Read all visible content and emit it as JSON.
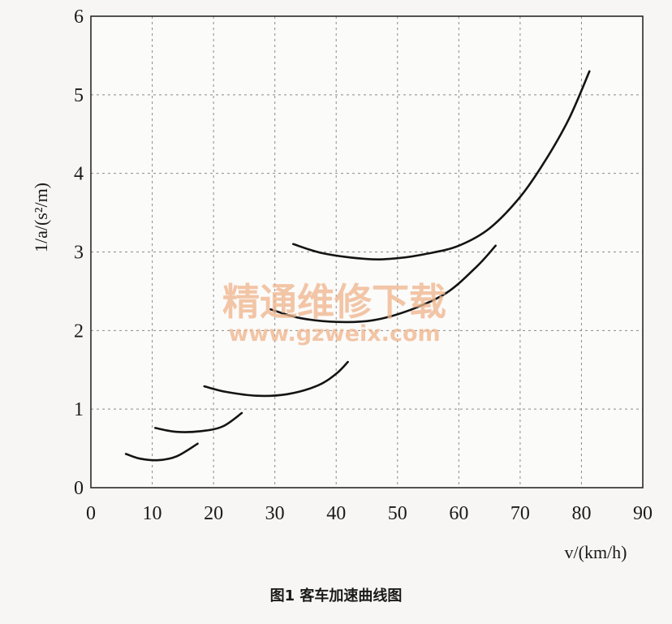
{
  "chart_data": {
    "type": "line",
    "xlabel": "v/(km/h)",
    "ylabel": "1/a/(s²/m)",
    "xlim": [
      0,
      90
    ],
    "ylim": [
      0,
      6
    ],
    "x_ticks": [
      "0",
      "10",
      "20",
      "30",
      "40",
      "50",
      "60",
      "70",
      "80",
      "90"
    ],
    "y_ticks": [
      "0",
      "1",
      "2",
      "3",
      "4",
      "5",
      "6"
    ],
    "grid": true,
    "series": [
      {
        "points": [
          [
            5.7,
            0.43
          ],
          [
            8,
            0.37
          ],
          [
            11,
            0.35
          ],
          [
            14,
            0.4
          ],
          [
            17.4,
            0.56
          ]
        ]
      },
      {
        "points": [
          [
            10.5,
            0.76
          ],
          [
            14,
            0.71
          ],
          [
            18,
            0.72
          ],
          [
            21.5,
            0.78
          ],
          [
            24.6,
            0.95
          ]
        ]
      },
      {
        "points": [
          [
            18.5,
            1.29
          ],
          [
            22,
            1.22
          ],
          [
            27,
            1.17
          ],
          [
            32,
            1.19
          ],
          [
            37,
            1.3
          ],
          [
            40,
            1.45
          ],
          [
            41.9,
            1.6
          ]
        ]
      },
      {
        "points": [
          [
            29.3,
            2.27
          ],
          [
            34,
            2.16
          ],
          [
            40,
            2.11
          ],
          [
            46,
            2.13
          ],
          [
            52,
            2.26
          ],
          [
            58,
            2.48
          ],
          [
            63,
            2.82
          ],
          [
            66,
            3.08
          ]
        ]
      },
      {
        "points": [
          [
            33,
            3.1
          ],
          [
            38,
            2.98
          ],
          [
            45,
            2.91
          ],
          [
            50,
            2.92
          ],
          [
            55,
            2.98
          ],
          [
            60,
            3.08
          ],
          [
            65,
            3.3
          ],
          [
            70,
            3.7
          ],
          [
            74,
            4.15
          ],
          [
            78,
            4.7
          ],
          [
            81.3,
            5.3
          ]
        ]
      }
    ]
  },
  "caption": "图1  客车加速曲线图",
  "watermark": {
    "line1": "精通维修下载",
    "line2": "www.gzweix.com"
  }
}
